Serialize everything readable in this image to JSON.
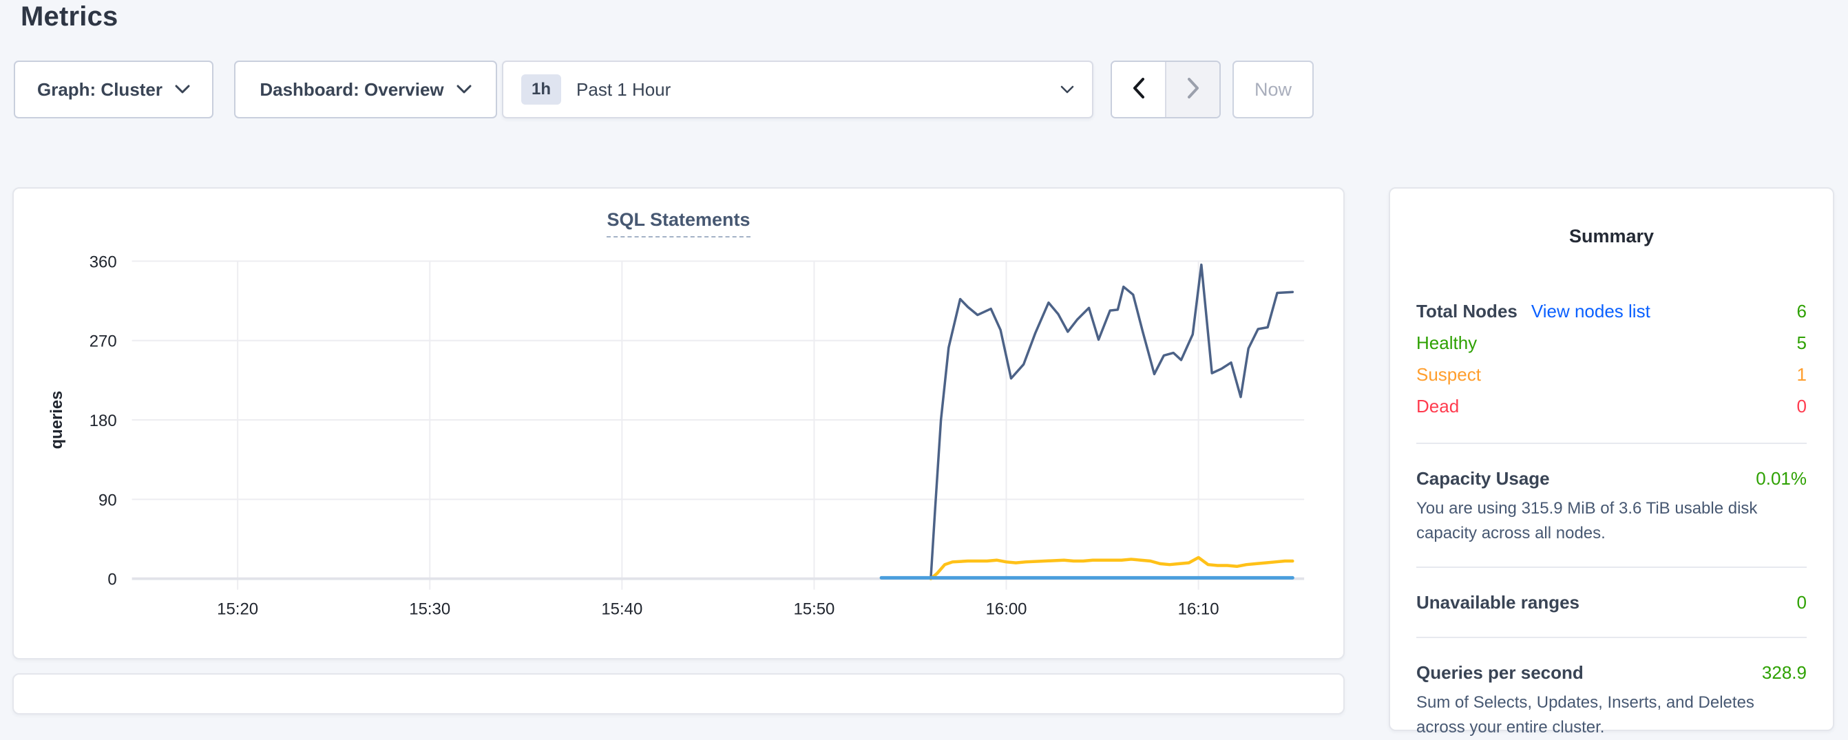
{
  "page": {
    "title": "Metrics"
  },
  "toolbar": {
    "graph_selector": {
      "label": "Graph: Cluster"
    },
    "dashboard_selector": {
      "label": "Dashboard: Overview"
    },
    "time_selector": {
      "badge": "1h",
      "label": "Past 1 Hour"
    },
    "now_button": {
      "label": "Now"
    }
  },
  "colors": {
    "healthy_green": "#2ea102",
    "suspect_orange": "#ff9e2d",
    "dead_red": "#ff3b4e",
    "link_blue": "#0a60ff",
    "navy_series": "#4c6287",
    "yellow_series": "#ffc118",
    "blue_series": "#4a9edd"
  },
  "chart_data": {
    "type": "line",
    "title": "SQL Statements",
    "ylabel": "queries",
    "ylim": [
      0,
      360
    ],
    "y_ticks": [
      0,
      90,
      180,
      270,
      360
    ],
    "xlim_minutes": [
      14.5,
      75.5
    ],
    "x_ticks": [
      {
        "minute": 20,
        "label": "15:20"
      },
      {
        "minute": 30,
        "label": "15:30"
      },
      {
        "minute": 40,
        "label": "15:40"
      },
      {
        "minute": 50,
        "label": "15:50"
      },
      {
        "minute": 60,
        "label": "16:00"
      },
      {
        "minute": 70,
        "label": "16:10"
      }
    ],
    "grid": {
      "color": "#ededf1",
      "zero_line_color": "#e2e3e9"
    },
    "legend": "none",
    "series": [
      {
        "name": "navy-line",
        "color": "#4c6287",
        "width": 3.5,
        "points": [
          [
            56.07,
            0
          ],
          [
            56.3,
            80
          ],
          [
            56.6,
            180
          ],
          [
            57.0,
            262
          ],
          [
            57.6,
            317
          ],
          [
            58.0,
            308
          ],
          [
            58.5,
            299
          ],
          [
            59.2,
            306
          ],
          [
            59.7,
            282
          ],
          [
            60.25,
            227
          ],
          [
            60.9,
            243
          ],
          [
            61.5,
            278
          ],
          [
            62.2,
            313
          ],
          [
            62.7,
            300
          ],
          [
            63.2,
            280
          ],
          [
            63.7,
            294
          ],
          [
            64.3,
            307
          ],
          [
            64.8,
            271
          ],
          [
            65.4,
            304
          ],
          [
            65.8,
            305
          ],
          [
            66.1,
            331
          ],
          [
            66.6,
            322
          ],
          [
            67.1,
            280
          ],
          [
            67.7,
            232
          ],
          [
            68.2,
            253
          ],
          [
            68.7,
            256
          ],
          [
            69.1,
            248
          ],
          [
            69.7,
            277
          ],
          [
            70.15,
            356
          ],
          [
            70.7,
            233
          ],
          [
            71.2,
            238
          ],
          [
            71.7,
            245
          ],
          [
            72.2,
            206
          ],
          [
            72.6,
            261
          ],
          [
            73.1,
            283
          ],
          [
            73.6,
            285
          ],
          [
            74.1,
            324
          ],
          [
            74.9,
            325
          ]
        ]
      },
      {
        "name": "yellow-line",
        "color": "#ffc118",
        "width": 4.5,
        "points": [
          [
            56.07,
            0
          ],
          [
            56.4,
            6
          ],
          [
            56.8,
            16
          ],
          [
            57.2,
            19
          ],
          [
            58,
            20
          ],
          [
            59,
            20
          ],
          [
            59.5,
            21
          ],
          [
            60,
            19
          ],
          [
            60.5,
            18
          ],
          [
            61,
            19
          ],
          [
            62,
            20
          ],
          [
            63,
            21
          ],
          [
            63.5,
            20
          ],
          [
            64,
            20
          ],
          [
            64.5,
            21
          ],
          [
            65,
            21
          ],
          [
            65.5,
            21
          ],
          [
            66,
            21
          ],
          [
            66.5,
            22
          ],
          [
            67,
            21
          ],
          [
            67.5,
            20
          ],
          [
            68,
            17
          ],
          [
            68.5,
            16
          ],
          [
            69,
            17
          ],
          [
            69.5,
            18
          ],
          [
            70,
            24
          ],
          [
            70.5,
            16
          ],
          [
            71,
            15
          ],
          [
            71.5,
            15
          ],
          [
            72,
            14
          ],
          [
            72.5,
            16
          ],
          [
            73,
            17
          ],
          [
            73.5,
            18
          ],
          [
            74,
            19
          ],
          [
            74.5,
            20
          ],
          [
            74.9,
            20
          ]
        ]
      },
      {
        "name": "blue-line",
        "color": "#4a9edd",
        "width": 5,
        "points": [
          [
            53.5,
            1
          ],
          [
            74.9,
            1
          ]
        ]
      }
    ]
  },
  "summary": {
    "title": "Summary",
    "total_nodes": {
      "label": "Total Nodes",
      "link_label": "View nodes list",
      "value": "6"
    },
    "node_status": [
      {
        "label": "Healthy",
        "value": "5"
      },
      {
        "label": "Suspect",
        "value": "1"
      },
      {
        "label": "Dead",
        "value": "0"
      }
    ],
    "capacity": {
      "label": "Capacity Usage",
      "value": "0.01%",
      "description": "You are using 315.9 MiB of 3.6 TiB usable disk capacity across all nodes."
    },
    "unavailable_ranges": {
      "label": "Unavailable ranges",
      "value": "0"
    },
    "qps": {
      "label": "Queries per second",
      "value": "328.9",
      "description": "Sum of Selects, Updates, Inserts, and Deletes across your entire cluster."
    }
  }
}
